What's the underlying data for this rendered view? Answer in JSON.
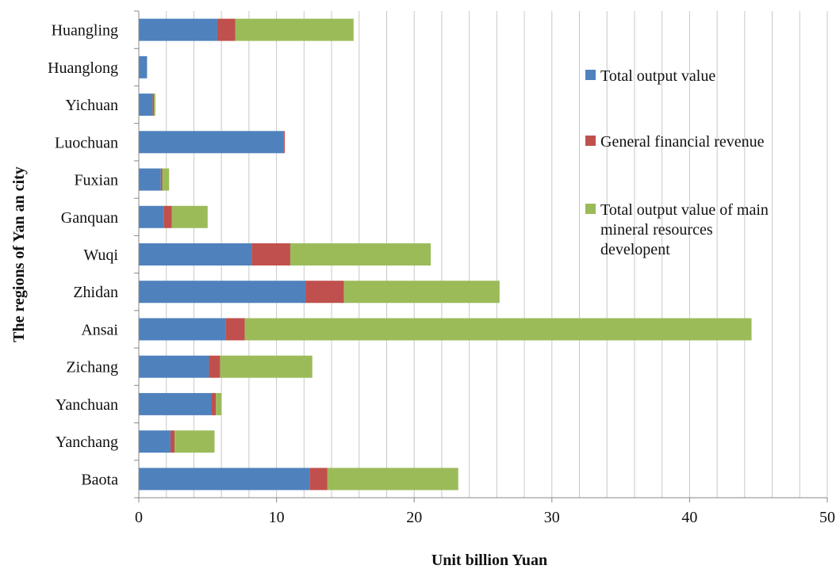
{
  "chart_data": {
    "type": "bar",
    "orientation": "horizontal",
    "stacked": true,
    "categories": [
      "Huangling",
      "Huanglong",
      "Yichuan",
      "Luochuan",
      "Fuxian",
      "Ganquan",
      "Wuqi",
      "Zhidan",
      "Ansai",
      "Zichang",
      "Yanchuan",
      "Yanchang",
      "Baota"
    ],
    "series": [
      {
        "name": "Total output value",
        "color": "#4f81bd",
        "values": [
          5.7,
          0.6,
          1.0,
          10.5,
          1.6,
          1.8,
          8.2,
          12.1,
          6.3,
          5.1,
          5.3,
          2.3,
          12.4
        ]
      },
      {
        "name": "General financial revenue",
        "color": "#c0504d",
        "values": [
          1.3,
          0.0,
          0.1,
          0.1,
          0.1,
          0.6,
          2.8,
          2.8,
          1.4,
          0.8,
          0.3,
          0.3,
          1.3
        ]
      },
      {
        "name_lines": [
          "Total output value of main",
          "mineral resources",
          "developent"
        ],
        "color": "#9bbb59",
        "values": [
          8.6,
          0.0,
          0.1,
          0.0,
          0.5,
          2.6,
          10.2,
          11.3,
          36.8,
          6.7,
          0.4,
          2.9,
          9.5
        ]
      }
    ],
    "xlabel": "Unit billion Yuan",
    "ylabel": "The regions of Yan an city",
    "xlim": [
      0,
      50
    ],
    "x_tick_labels": [
      "0",
      "10",
      "20",
      "30",
      "40",
      "50"
    ],
    "minor_grid_step": 2,
    "grid": true,
    "legend_position": "right"
  }
}
